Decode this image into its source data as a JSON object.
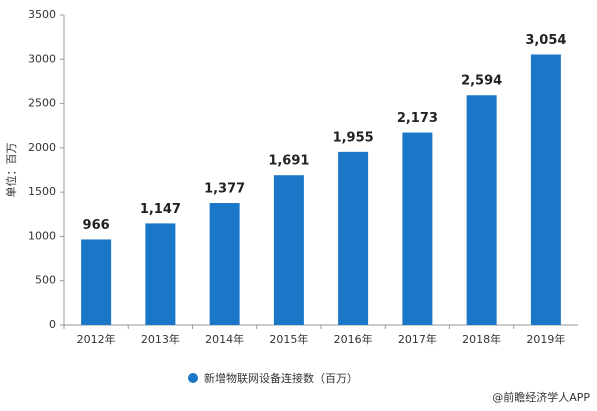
{
  "chart_data": {
    "type": "bar",
    "y_label": "单位：百万",
    "categories": [
      "2012年",
      "2013年",
      "2014年",
      "2015年",
      "2016年",
      "2017年",
      "2018年",
      "2019年"
    ],
    "series": [
      {
        "name": "新增物联网设备连接数（百万）",
        "color": "#1a76c6",
        "values": [
          966,
          1147,
          1377,
          1691,
          1955,
          2173,
          2594,
          3054
        ],
        "value_labels": [
          "966",
          "1,147",
          "1,377",
          "1,691",
          "1,955",
          "2,173",
          "2,594",
          "3,054"
        ]
      }
    ],
    "ylim": [
      0,
      3500
    ],
    "yticks": [
      0,
      500,
      1000,
      1500,
      2000,
      2500,
      3000,
      3500
    ],
    "grid": false,
    "legend": "bottom",
    "source": "@前瞻经济学人APP"
  }
}
